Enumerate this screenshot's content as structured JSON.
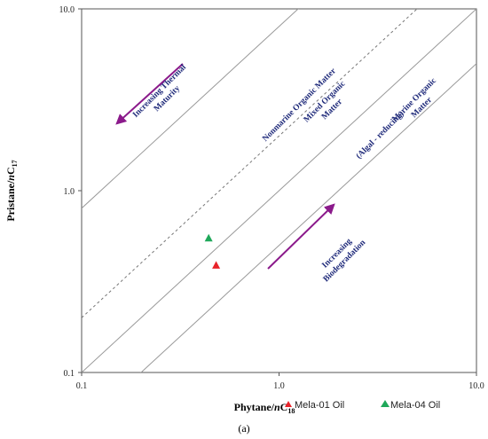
{
  "chart_data": {
    "type": "scatter",
    "title": "",
    "xlabel_main": "Phytane/",
    "xlabel_italic": "n",
    "xlabel_base": "C",
    "xlabel_sub": "18",
    "ylabel_main": "Pristane/",
    "ylabel_italic": "n",
    "ylabel_base": "C",
    "ylabel_sub": "17",
    "x_scale": "log",
    "y_scale": "log",
    "xlim": [
      0.1,
      10.0
    ],
    "ylim": [
      0.1,
      10.0
    ],
    "x_ticks": [
      "0.1",
      "1.0",
      "10.0"
    ],
    "y_ticks": [
      "0.1",
      "1.0",
      "10.0"
    ],
    "grid": false,
    "legend_position": "bottom-right",
    "series": [
      {
        "name": "Mela-01 Oil",
        "color": "#e8232a",
        "marker": "triangle",
        "x": [
          0.48
        ],
        "y": [
          0.39
        ]
      },
      {
        "name": "Mela-04 Oil",
        "color": "#1fa85a",
        "marker": "triangle",
        "x": [
          0.44
        ],
        "y": [
          0.55
        ]
      }
    ],
    "reference_lines": [
      {
        "ratio": 8.0,
        "style": "solid"
      },
      {
        "ratio": 2.0,
        "style": "dashed"
      },
      {
        "ratio": 1.0,
        "style": "solid"
      },
      {
        "ratio": 0.5,
        "style": "solid"
      }
    ],
    "annotations": [
      {
        "lines": [
          "Increasing Thermal",
          "Maturity"
        ]
      },
      {
        "lines": [
          "Nonmarine Organic Matter"
        ]
      },
      {
        "lines": [
          "Mixed Organic",
          "Matter"
        ]
      },
      {
        "lines": [
          "Marine Organic",
          "Matter"
        ]
      },
      {
        "lines": [
          "(Algal - reducing)"
        ]
      },
      {
        "lines": [
          "Increasing",
          "Biodegradation"
        ]
      }
    ],
    "arrow_color": "#8b1a8b"
  },
  "caption": "(a)"
}
